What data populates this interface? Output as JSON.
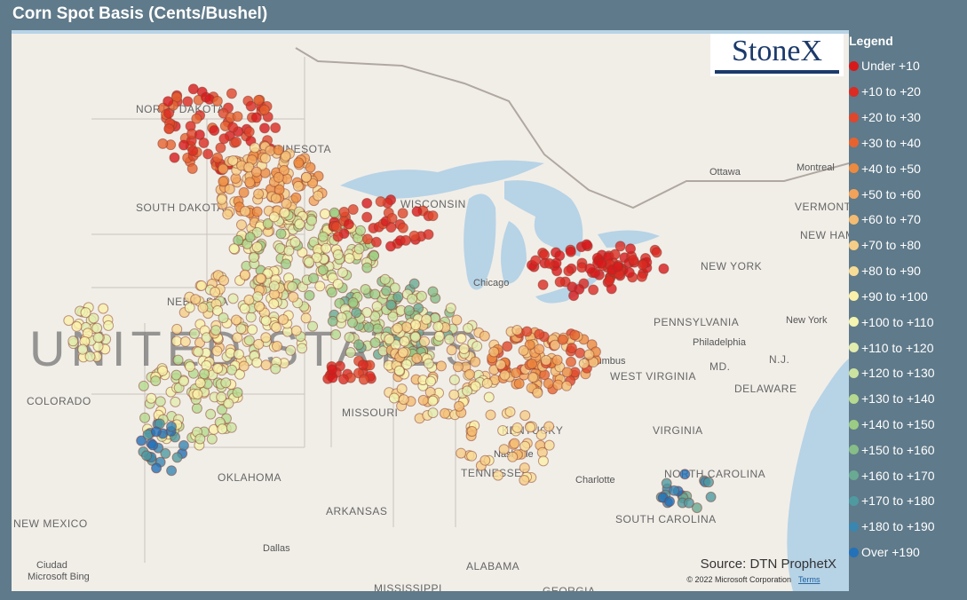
{
  "header": {
    "title": "Corn Spot Basis (Cents/Bushel)"
  },
  "legend": {
    "title": "Legend",
    "items": [
      {
        "label": "Under +10",
        "color": "#d7191c"
      },
      {
        "label": "+10 to +20",
        "color": "#db2b22"
      },
      {
        "label": "+20 to +30",
        "color": "#e0462b"
      },
      {
        "label": "+30 to +40",
        "color": "#e6632f"
      },
      {
        "label": "+40 to +50",
        "color": "#ec8a3f"
      },
      {
        "label": "+50 to +60",
        "color": "#f3a25a"
      },
      {
        "label": "+60 to +70",
        "color": "#f4bb72"
      },
      {
        "label": "+70 to +80",
        "color": "#f6cd87"
      },
      {
        "label": "+80 to +90",
        "color": "#f7dc96"
      },
      {
        "label": "+90 to +100",
        "color": "#faf0a9"
      },
      {
        "label": "+100 to +110",
        "color": "#f3f5b0"
      },
      {
        "label": "+110 to +120",
        "color": "#e2ecae"
      },
      {
        "label": "+120 to +130",
        "color": "#cce3a0"
      },
      {
        "label": "+130 to +140",
        "color": "#b5d98f"
      },
      {
        "label": "+140 to +150",
        "color": "#9ccc83"
      },
      {
        "label": "+150 to +160",
        "color": "#86bd88"
      },
      {
        "label": "+160 to +170",
        "color": "#6aaa92"
      },
      {
        "label": "+170 to +180",
        "color": "#4f9aa0"
      },
      {
        "label": "+180 to +190",
        "color": "#3a86b0"
      },
      {
        "label": "Over +190",
        "color": "#2371b8"
      }
    ]
  },
  "logo": "StoneX",
  "map": {
    "labels": [
      "NORTH DAKOTA",
      "MINNESOTA",
      "SOUTH DAKOTA",
      "WISCONSIN",
      "NEBRASKA",
      "UNITED STATES",
      "COLORADO",
      "MISSOURI",
      "KENTUCKY",
      "TENNESSEE",
      "OKLAHOMA",
      "ARKANSAS",
      "NEW MEXICO",
      "ALABAMA",
      "MISSISSIPPI",
      "GEORGIA",
      "VIRGINIA",
      "WEST VIRGINIA",
      "PENNSYLVANIA",
      "NEW YORK",
      "NORTH CAROLINA",
      "SOUTH CAROLINA",
      "VERMONT",
      "NEW HAMPSHIRE",
      "DELAWARE",
      "MD.",
      "N.J.",
      "Ottawa",
      "Montreal",
      "Chicago",
      "Columbus",
      "Nashville",
      "Charlotte",
      "Dallas",
      "Philadelphia",
      "New York",
      "Ciudad",
      "Microsoft Bing"
    ],
    "source": "Source: DTN ProphetX",
    "copyright": "© 2022 Microsoft Corporation",
    "terms": "Terms"
  }
}
